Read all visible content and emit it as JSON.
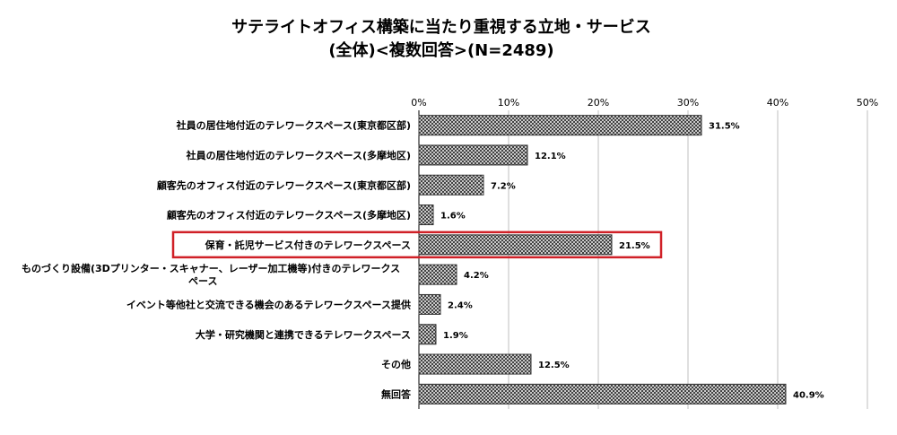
{
  "chart_data": {
    "type": "bar",
    "orientation": "horizontal",
    "title": [
      "サテライトオフィス構築に当たり重視する立地・サービス",
      "(全体)<複数回答>(N=2489)"
    ],
    "xlabel": "",
    "ylabel": "",
    "xlim": [
      0,
      50
    ],
    "tick_labels": [
      "0%",
      "10%",
      "20%",
      "30%",
      "40%",
      "50%"
    ],
    "tick_values": [
      0,
      10,
      20,
      30,
      40,
      50
    ],
    "grid": true,
    "legend": "none",
    "categories": [
      [
        "社員の居住地付近のテレワークスペース(東京都区部)"
      ],
      [
        "社員の居住地付近のテレワークスペース(多摩地区)"
      ],
      [
        "顧客先のオフィス付近のテレワークスペース(東京都区部)"
      ],
      [
        "顧客先のオフィス付近のテレワークスペース(多摩地区)"
      ],
      [
        "保育・託児サービス付きのテレワークスペース"
      ],
      [
        "ものづくり設備(3Dプリンター・スキャナー、レーザー加工機等)付きのテレワークス",
        "ペース"
      ],
      [
        "イベント等他社と交流できる機会のあるテレワークスペース提供"
      ],
      [
        "大学・研究機関と連携できるテレワークスペース"
      ],
      [
        "その他"
      ],
      [
        "無回答"
      ]
    ],
    "values": [
      31.5,
      12.1,
      7.2,
      1.6,
      21.5,
      4.2,
      2.4,
      1.9,
      12.5,
      40.9
    ],
    "value_labels": [
      "31.5%",
      "12.1%",
      "7.2%",
      "1.6%",
      "21.5%",
      "4.2%",
      "2.4%",
      "1.9%",
      "12.5%",
      "40.9%"
    ],
    "highlighted_index": 4,
    "highlight_color": "#d02027",
    "bar_fill": "crosshatch",
    "bar_color": "#333333",
    "grid_color": "#bfbfbf"
  }
}
